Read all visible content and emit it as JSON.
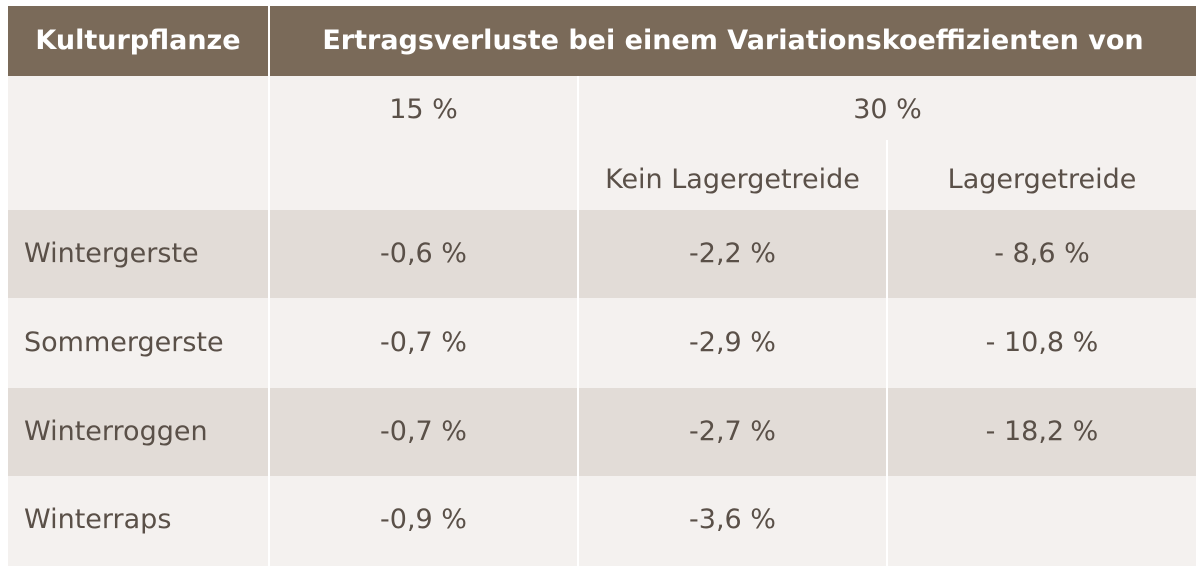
{
  "header": {
    "col1": "Kulturpflanze",
    "col2": "Ertragsverluste bei einem Variationskoeffizienten von"
  },
  "subheader": {
    "p15": "15 %",
    "p30": "30 %",
    "kein_lager": "Kein Lagergetreide",
    "lager": "Lagergetreide"
  },
  "rows": [
    {
      "crop": "Wintergerste",
      "v15": "-0,6 %",
      "v30_kein": "-2,2 %",
      "v30_lager": "- 8,6 %"
    },
    {
      "crop": "Sommergerste",
      "v15": "-0,7 %",
      "v30_kein": "-2,9 %",
      "v30_lager": "- 10,8 %"
    },
    {
      "crop": "Winterroggen",
      "v15": "-0,7 %",
      "v30_kein": "-2,7 %",
      "v30_lager": "- 18,2 %"
    },
    {
      "crop": "Winterraps",
      "v15": "-0,9 %",
      "v30_kein": "-3,6 %",
      "v30_lager": ""
    }
  ],
  "colors": {
    "header_bg": "#7a6a59",
    "row_shaded": "#e2dcd7",
    "row_light": "#f4f1ef",
    "text": "#5a5048"
  }
}
